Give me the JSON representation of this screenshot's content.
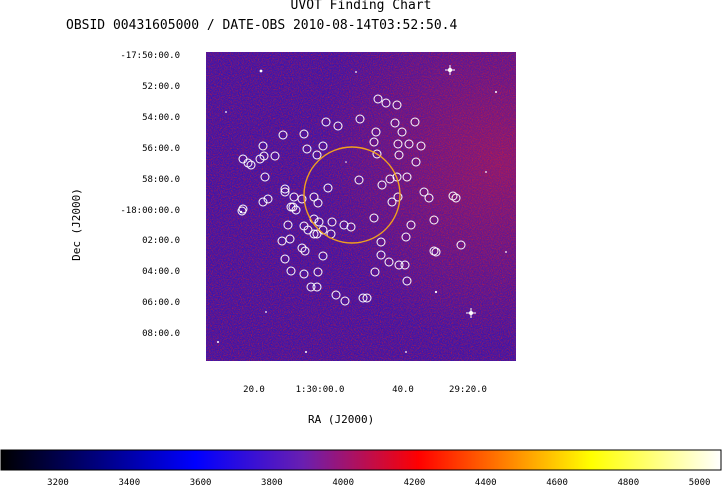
{
  "title": "UVOT Finding Chart",
  "subtitle": "OBSID 00431605000 / DATE-OBS 2010-08-14T03:52:50.4",
  "chart_data": {
    "type": "heatmap",
    "title": "UVOT Finding Chart",
    "subtitle": "OBSID 00431605000 / DATE-OBS 2010-08-14T03:52:50.4",
    "xlabel": "RA (J2000)",
    "ylabel": "Dec (J2000)",
    "x_ticks": [
      "20.0",
      "1:30:00.0",
      "40.0",
      "29:20.0"
    ],
    "y_ticks": [
      "-17:50:00.0",
      "52:00.0",
      "54:00.0",
      "56:00.0",
      "58:00.0",
      "-18:00:00.0",
      "02:00.0",
      "04:00.0",
      "06:00.0",
      "08:00.0"
    ],
    "colorbar": {
      "ticks": [
        3200,
        3400,
        3600,
        3800,
        4000,
        4200,
        4400,
        4600,
        4800,
        5000
      ],
      "range": [
        3040,
        5060
      ],
      "colors": [
        "#000000",
        "#0000ff",
        "#6a1fb0",
        "#ff0000",
        "#ffff00",
        "#ffffff"
      ]
    },
    "error_circle_color": "#f0a020",
    "source_marker_color": "#ffffff"
  }
}
